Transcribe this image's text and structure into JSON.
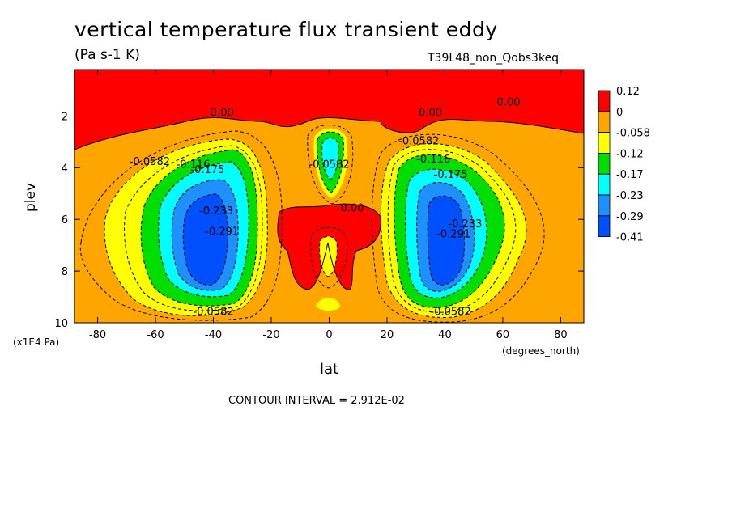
{
  "chart_data": {
    "type": "heatmap",
    "title": "vertical temperature flux transient eddy",
    "units": "(Pa s-1 K)",
    "run_id": "T39L48_non_Qobs3keq",
    "xlabel": "lat",
    "xunits": "(degrees_north)",
    "ylabel": "plev",
    "yunits": "(x1E4 Pa)",
    "footer": "CONTOUR INTERVAL = 2.912E-02",
    "xlim": [
      -88,
      88
    ],
    "ylim": [
      10,
      0.2
    ],
    "x_ticks": [
      -80,
      -60,
      -40,
      -20,
      0,
      20,
      40,
      60,
      80
    ],
    "y_ticks": [
      2,
      4,
      6,
      8,
      10
    ],
    "colorbar": {
      "labels": [
        "0.12",
        "0",
        "-0.058",
        "-0.12",
        "-0.17",
        "-0.23",
        "-0.29",
        "-0.41"
      ],
      "colors": [
        "#ff0000",
        "#ffa500",
        "#ffff00",
        "#00dd00",
        "#00ffff",
        "#1e90ff",
        "#0050ff"
      ]
    },
    "contour_labels": [
      {
        "text": "0.00",
        "lat": -37,
        "plev": 2.0
      },
      {
        "text": "0.00",
        "lat": 35,
        "plev": 2.0
      },
      {
        "text": "0.00",
        "lat": 62,
        "plev": 1.6
      },
      {
        "text": "0.00",
        "lat": 8,
        "plev": 5.7
      },
      {
        "text": "-0.0582",
        "lat": -62,
        "plev": 3.9
      },
      {
        "text": "-0.116",
        "lat": -47,
        "plev": 4.0
      },
      {
        "text": "-0.175",
        "lat": -42,
        "plev": 4.2
      },
      {
        "text": "-0.233",
        "lat": -39,
        "plev": 5.8
      },
      {
        "text": "-0.291",
        "lat": -37,
        "plev": 6.6
      },
      {
        "text": "-0.0582",
        "lat": -40,
        "plev": 9.7
      },
      {
        "text": "-0.0582",
        "lat": 0,
        "plev": 4.0
      },
      {
        "text": "-0.0582",
        "lat": 31,
        "plev": 3.1
      },
      {
        "text": "-0.116",
        "lat": 36,
        "plev": 3.8
      },
      {
        "text": "-0.175",
        "lat": 42,
        "plev": 4.4
      },
      {
        "text": "-0.233",
        "lat": 47,
        "plev": 6.3
      },
      {
        "text": "-0.291",
        "lat": 43,
        "plev": 6.7
      },
      {
        "text": "-0.0582",
        "lat": 42,
        "plev": 9.7
      }
    ]
  }
}
